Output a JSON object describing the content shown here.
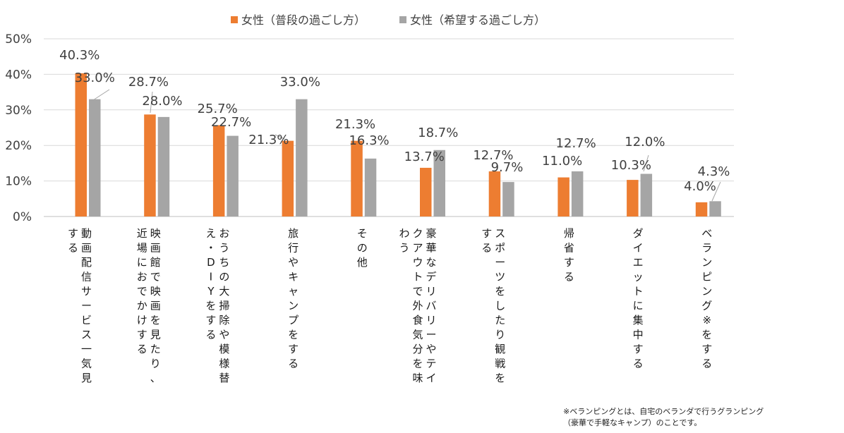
{
  "chart_data": {
    "type": "bar",
    "title": "",
    "xlabel": "",
    "ylabel": "",
    "ylim": [
      0,
      50
    ],
    "yticks": [
      "0%",
      "10%",
      "20%",
      "30%",
      "40%",
      "50%"
    ],
    "grid": true,
    "legend_position": "top-center",
    "categories": [
      [
        "動画配信サービス一気見",
        "する"
      ],
      [
        "映画館で映画を見たり、",
        "近場におでかけする"
      ],
      [
        "おうちの大掃除や模様替",
        "え・DIYをする"
      ],
      [
        "旅行やキャンプをする"
      ],
      [
        "その他"
      ],
      [
        "豪華なデリバリーやテイ",
        "クアウトで外食気分を味",
        "わう"
      ],
      [
        "スポーツをしたり観戦を",
        "する"
      ],
      [
        "帰省する"
      ],
      [
        "ダイエットに集中する"
      ],
      [
        "ベランピング※をする"
      ]
    ],
    "series": [
      {
        "name": "女性（普段の過ごし方）",
        "color": "#ED7D31",
        "values": [
          40.3,
          28.7,
          25.7,
          21.3,
          21.3,
          13.7,
          12.7,
          11.0,
          10.3,
          4.0
        ],
        "labels": [
          "40.3%",
          "28.7%",
          "25.7%",
          "21.3%",
          "21.3%",
          "13.7%",
          "12.7%",
          "11.0%",
          "10.3%",
          "4.0%"
        ]
      },
      {
        "name": "女性（希望する過ごし方）",
        "color": "#A5A5A5",
        "values": [
          33.0,
          28.0,
          22.7,
          33.0,
          16.3,
          18.7,
          9.7,
          12.7,
          12.0,
          4.3
        ],
        "labels": [
          "33.0%",
          "28.0%",
          "22.7%",
          "33.0%",
          "16.3%",
          "18.7%",
          "9.7%",
          "12.7%",
          "12.0%",
          "4.3%"
        ]
      }
    ]
  },
  "footnote": {
    "line1": "※ベランピングとは、自宅のベランダで行うグランピング",
    "line2": "（豪華で手軽なキャンプ）のことです。"
  }
}
